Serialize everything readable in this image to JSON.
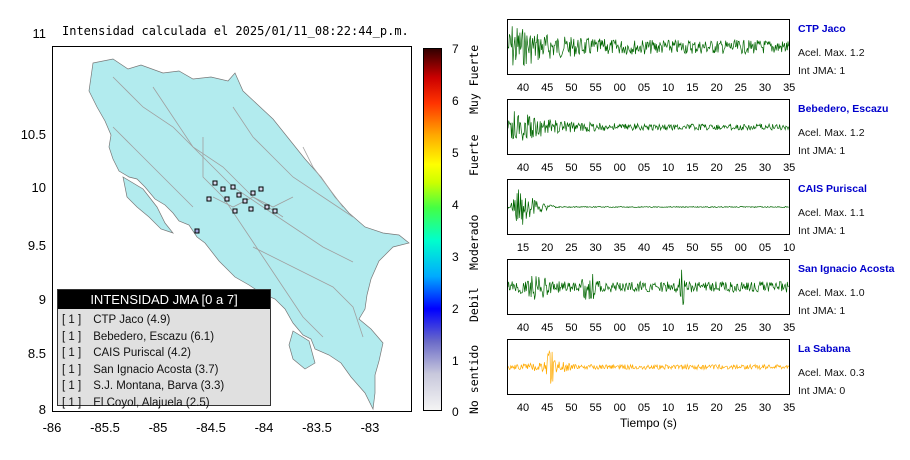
{
  "map": {
    "title": "Intensidad calculada el 2025/01/11_08:22:44_p.m.",
    "y_ticks": [
      "11",
      "10.5",
      "10",
      "9.5",
      "9",
      "8.5",
      "8"
    ],
    "x_ticks": [
      "-86",
      "-85.5",
      "-85",
      "-84.5",
      "-84",
      "-83.5",
      "-83"
    ]
  },
  "legend": {
    "title": "INTENSIDAD JMA [0 a 7]",
    "rows": [
      {
        "level": "[ 1 ]",
        "station": "CTP Jaco (4.9)"
      },
      {
        "level": "[ 1 ]",
        "station": "Bebedero, Escazu (6.1)"
      },
      {
        "level": "[ 1 ]",
        "station": "CAIS Puriscal (4.2)"
      },
      {
        "level": "[ 1 ]",
        "station": "San Ignacio Acosta (3.7)"
      },
      {
        "level": "[ 1 ]",
        "station": "S.J. Montana, Barva (3.3)"
      },
      {
        "level": "[ 1 ]",
        "station": "El Coyol, Alajuela (2.5)"
      }
    ]
  },
  "colorbar": {
    "ticks": [
      "7",
      "6",
      "5",
      "4",
      "3",
      "2",
      "1",
      "0"
    ],
    "words": [
      "Muy Fuerte",
      "Fuerte",
      "Moderado",
      "Debil",
      "No sentido"
    ]
  },
  "traces": [
    {
      "name": "CTP Jaco",
      "acel": "Acel. Max. 1.2",
      "jma": "Int JMA: 1",
      "color": "#006600",
      "ticks": [
        "40",
        "45",
        "50",
        "55",
        "00",
        "05",
        "10",
        "15",
        "20",
        "25",
        "30",
        "35"
      ]
    },
    {
      "name": "Bebedero, Escazu",
      "acel": "Acel. Max. 1.2",
      "jma": "Int JMA: 1",
      "color": "#006600",
      "ticks": [
        "40",
        "45",
        "50",
        "55",
        "00",
        "05",
        "10",
        "15",
        "20",
        "25",
        "30",
        "35"
      ]
    },
    {
      "name": "CAIS Puriscal",
      "acel": "Acel. Max. 1.1",
      "jma": "Int JMA: 1",
      "color": "#006600",
      "ticks": [
        "15",
        "20",
        "25",
        "30",
        "35",
        "40",
        "45",
        "50",
        "55",
        "00",
        "05",
        "10"
      ]
    },
    {
      "name": "San Ignacio Acosta",
      "acel": "Acel. Max. 1.0",
      "jma": "Int JMA: 1",
      "color": "#006600",
      "ticks": [
        "40",
        "45",
        "50",
        "55",
        "00",
        "05",
        "10",
        "15",
        "20",
        "25",
        "30",
        "35"
      ]
    },
    {
      "name": "La Sabana",
      "acel": "Acel. Max. 0.3",
      "jma": "Int JMA: 0",
      "color": "#ffaa00",
      "ticks": [
        "40",
        "45",
        "50",
        "55",
        "00",
        "05",
        "10",
        "15",
        "20",
        "25",
        "30",
        "35"
      ]
    }
  ],
  "time_label": "Tiempo (s)",
  "colors": {
    "land": "#b2ebee",
    "sea": "#ffffff",
    "roads": "#a0a0a0"
  }
}
